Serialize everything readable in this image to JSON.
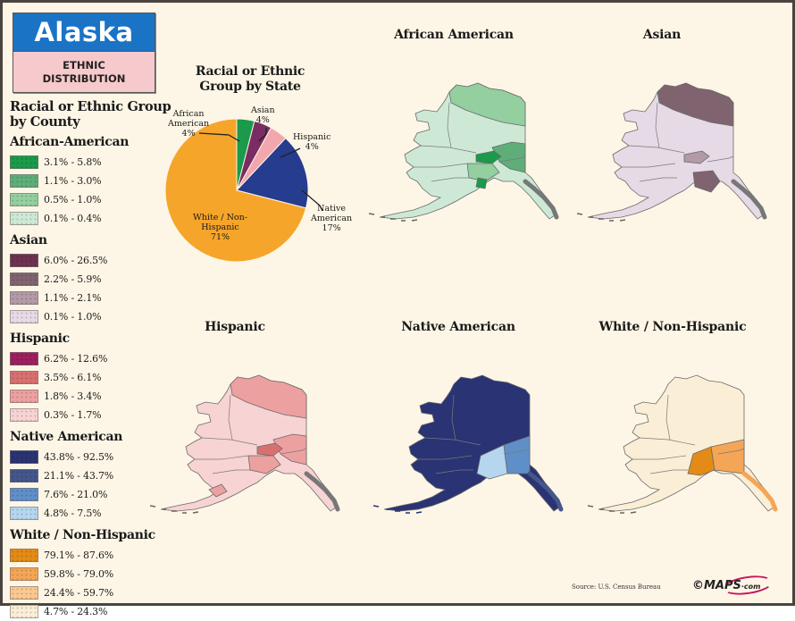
{
  "header": {
    "state": "Alaska",
    "subtitle_line1": "ETHNIC",
    "subtitle_line2": "DISTRIBUTION",
    "colors": {
      "banner_blue": "#1b73c6",
      "banner_pink": "#f6c9cc"
    }
  },
  "legend": {
    "heading_line1": "Racial or Ethnic Group",
    "heading_line2": "by County",
    "groups": [
      {
        "title": "African-American",
        "items": [
          {
            "label": "3.1% - 5.8%",
            "color": "#1a9a4a"
          },
          {
            "label": "1.1% - 3.0%",
            "color": "#5fae79"
          },
          {
            "label": "0.5% - 1.0%",
            "color": "#93cf9f"
          },
          {
            "label": "0.1% - 0.4%",
            "color": "#cde9d6"
          }
        ]
      },
      {
        "title": "Asian",
        "items": [
          {
            "label": "6.0% - 26.5%",
            "color": "#6d3250"
          },
          {
            "label": "2.2% - 5.9%",
            "color": "#7f646f"
          },
          {
            "label": "1.1% - 2.1%",
            "color": "#b29aa6"
          },
          {
            "label": "0.1% - 1.0%",
            "color": "#e6dae6"
          }
        ]
      },
      {
        "title": "Hispanic",
        "items": [
          {
            "label": "6.2% - 12.6%",
            "color": "#9c1f5e"
          },
          {
            "label": "3.5% - 6.1%",
            "color": "#d97070"
          },
          {
            "label": "1.8% - 3.4%",
            "color": "#eda0a0"
          },
          {
            "label": "0.3% - 1.7%",
            "color": "#f8d3d3"
          }
        ]
      },
      {
        "title": "Native American",
        "items": [
          {
            "label": "43.8% - 92.5%",
            "color": "#2a3373"
          },
          {
            "label": "21.1% - 43.7%",
            "color": "#45568a"
          },
          {
            "label": "7.6% - 21.0%",
            "color": "#5f8fc8"
          },
          {
            "label": "4.8% - 7.5%",
            "color": "#b5d6ee"
          }
        ]
      },
      {
        "title": "White / Non-Hispanic",
        "items": [
          {
            "label": "79.1% - 87.6%",
            "color": "#e38b16"
          },
          {
            "label": "59.8% - 79.0%",
            "color": "#f4a555"
          },
          {
            "label": "24.4% - 59.7%",
            "color": "#fac890"
          },
          {
            "label": "4.7% - 24.3%",
            "color": "#fbeed6"
          }
        ]
      }
    ]
  },
  "chart_data": {
    "type": "pie",
    "title": "Racial or Ethnic Group by State",
    "categories": [
      "African American",
      "Asian",
      "Hispanic",
      "Native American",
      "White / Non-Hispanic"
    ],
    "values": [
      4,
      4,
      4,
      17,
      71
    ],
    "unit": "%",
    "colors": [
      "#1a9a4a",
      "#7a2c63",
      "#f2a7ad",
      "#263c8f",
      "#f6a52b"
    ],
    "labels": [
      {
        "line1": "African",
        "line2": "American",
        "value": "4%"
      },
      {
        "line1": "Asian",
        "line2": "",
        "value": "4%"
      },
      {
        "line1": "Hispanic",
        "line2": "",
        "value": "4%"
      },
      {
        "line1": "Native",
        "line2": "American",
        "value": "17%"
      },
      {
        "line1": "White / Non-",
        "line2": "Hispanic",
        "value": "71%"
      }
    ]
  },
  "maps": [
    {
      "title": "African American",
      "base": "#cde9d6",
      "accent1": "#93cf9f",
      "accent2": "#5fae79",
      "accent3": "#1a9a4a"
    },
    {
      "title": "Asian",
      "base": "#e6dae6",
      "accent1": "#b29aa6",
      "accent2": "#7f646f",
      "accent3": "#6d3250"
    },
    {
      "title": "Hispanic",
      "base": "#f8d3d3",
      "accent1": "#eda0a0",
      "accent2": "#d97070",
      "accent3": "#9c1f5e"
    },
    {
      "title": "Native American",
      "base": "#2a3373",
      "accent1": "#b5d6ee",
      "accent2": "#5f8fc8",
      "accent3": "#45568a"
    },
    {
      "title": "White / Non-Hispanic",
      "base": "#fbeed6",
      "accent1": "#f4a555",
      "accent2": "#e38b16",
      "accent3": "#fac890"
    }
  ],
  "footer": {
    "source": "Source: U.S. Census Bureau",
    "logo_prefix": "©",
    "logo_main": "MAPS",
    "logo_suffix": "·com"
  }
}
